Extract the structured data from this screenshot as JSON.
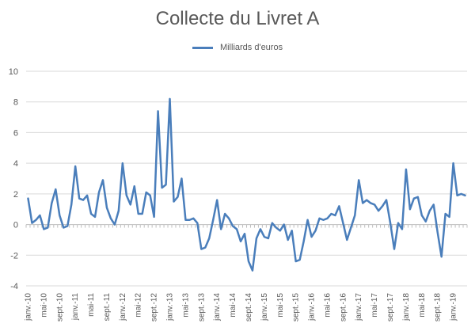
{
  "chart_data": {
    "type": "line",
    "title": "Collecte du Livret A",
    "legend_position": "top",
    "grid": true,
    "ylim": [
      -4,
      10
    ],
    "yticks": [
      -4,
      -2,
      0,
      2,
      4,
      6,
      8,
      10
    ],
    "line_color": "#4a7ebb",
    "series": [
      {
        "name": "Milliards d'euros",
        "values": [
          1.7,
          0.1,
          0.3,
          0.6,
          -0.3,
          -0.2,
          1.4,
          2.3,
          0.6,
          -0.2,
          -0.1,
          1.3,
          3.8,
          1.7,
          1.6,
          1.9,
          0.7,
          0.5,
          2.1,
          2.9,
          1.1,
          0.4,
          0.0,
          0.9,
          4.0,
          1.9,
          1.3,
          2.5,
          0.7,
          0.7,
          2.1,
          1.9,
          0.5,
          7.4,
          2.4,
          2.6,
          8.2,
          1.5,
          1.8,
          3.0,
          0.3,
          0.3,
          0.4,
          0.1,
          -1.6,
          -1.5,
          -0.9,
          0.3,
          1.6,
          -0.3,
          0.7,
          0.4,
          -0.1,
          -0.3,
          -1.1,
          -0.6,
          -2.4,
          -3.0,
          -0.9,
          -0.3,
          -0.8,
          -0.9,
          0.1,
          -0.2,
          -0.4,
          0.0,
          -1.0,
          -0.4,
          -2.4,
          -2.3,
          -1.1,
          0.3,
          -0.8,
          -0.4,
          0.4,
          0.3,
          0.4,
          0.7,
          0.6,
          1.2,
          0.1,
          -1.0,
          -0.2,
          0.6,
          2.9,
          1.4,
          1.6,
          1.4,
          1.3,
          0.9,
          1.2,
          1.6,
          0.1,
          -1.6,
          0.1,
          -0.3,
          3.6,
          1.0,
          1.7,
          1.8,
          0.6,
          0.2,
          0.9,
          1.3,
          -0.5,
          -2.1,
          0.7,
          0.5,
          4.0,
          1.9,
          2.0,
          1.9
        ]
      }
    ],
    "x_tick_labels": [
      "janv.-10",
      "mai-10",
      "sept.-10",
      "janv.-11",
      "mai-11",
      "sept.-11",
      "janv.-12",
      "mai-12",
      "sept.-12",
      "janv.-13",
      "mai-13",
      "sept.-13",
      "janv.-14",
      "mai-14",
      "sept.-14",
      "janv.-15",
      "mai-15",
      "sept.-15",
      "janv.-16",
      "mai-16",
      "sept.-16",
      "janv.-17",
      "mai-17",
      "sept.-17",
      "janv.-18",
      "mai-18",
      "sept.-18",
      "janv.-19"
    ]
  }
}
